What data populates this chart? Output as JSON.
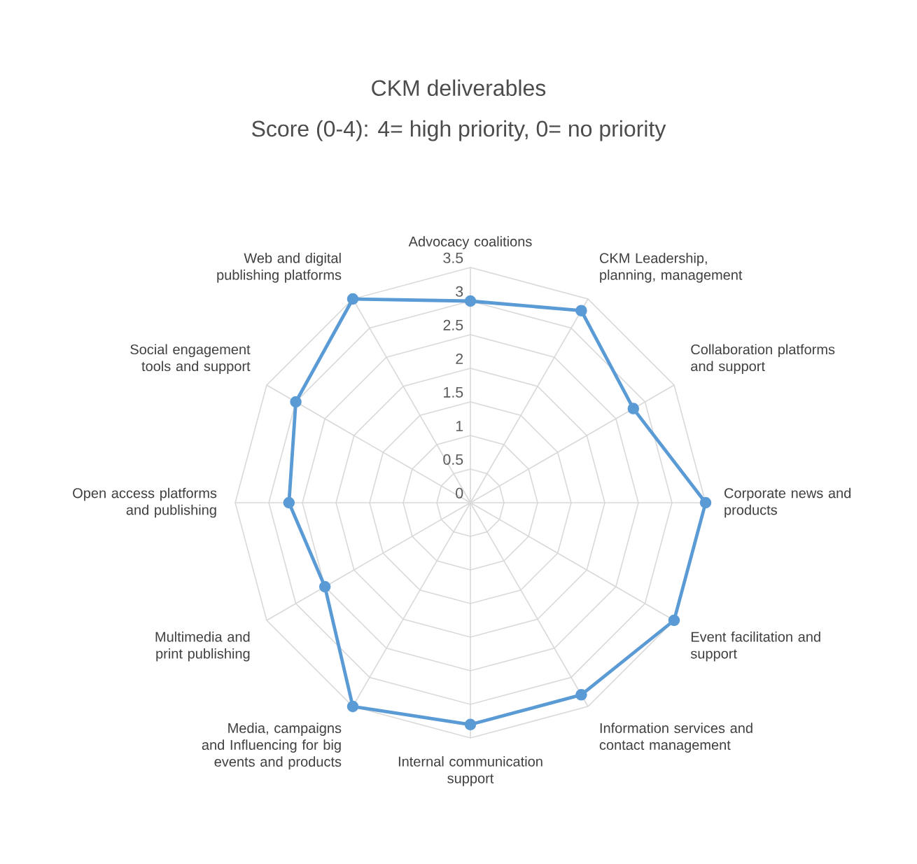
{
  "chart_data": {
    "type": "radar",
    "title": "CKM deliverables",
    "subtitle": "Score (0-4):  4= high priority, 0= no priority",
    "categories": [
      "Advocacy coalitions",
      "CKM Leadership, planning, management",
      "Collaboration platforms and support",
      "Corporate news and products",
      "Event facilitation and support",
      "Information services and contact management",
      "Internal communication support",
      "Media, campaigns and Influencing for big events and products",
      "Multimedia and print publishing",
      "Open access platforms and publishing",
      "Social engagement tools and support",
      "Web and digital publishing platforms"
    ],
    "series": [
      {
        "color": "#5b9bd5",
        "values": [
          3,
          3.3,
          2.8,
          3.5,
          3.5,
          3.3,
          3.3,
          3.5,
          2.5,
          2.7,
          3,
          3.5
        ]
      }
    ],
    "ylim": [
      0,
      3.5
    ],
    "yticks": [
      0,
      0.5,
      1,
      1.5,
      2,
      2.5,
      3,
      3.5
    ],
    "grid": true,
    "marker": "circle",
    "line_style": "solid"
  }
}
